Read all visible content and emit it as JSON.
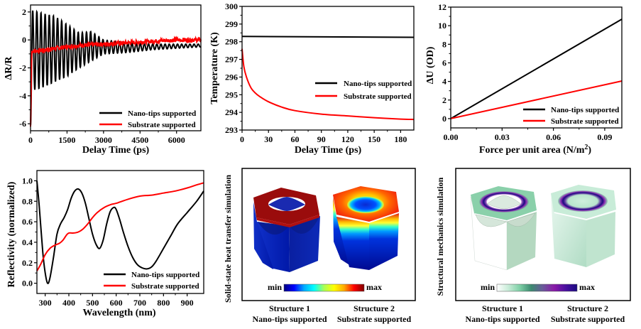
{
  "colors": {
    "nano_tips": "#000000",
    "substrate": "#ff0000"
  },
  "legend": {
    "nano_tips": "Nano-tips supported",
    "substrate": "Substrate supported"
  },
  "chart_data": [
    {
      "id": "reflectivity-change",
      "type": "line",
      "title": "",
      "xlabel": "Delay Time (ps)",
      "ylabel": "ΔR/R",
      "xlim": [
        0,
        7000
      ],
      "ylim": [
        -6.5,
        2.5
      ],
      "xticks": [
        0,
        1500,
        3000,
        4500,
        6000
      ],
      "yticks": [
        -6,
        -4,
        -2,
        0,
        2
      ],
      "legend_position": "bottom-right",
      "series": [
        {
          "name": "Nano-tips supported",
          "description": "damped oscillation, period ~170 ps, amplitude decays from ~2.8 to ~0.2, baseline rising from -0.8 to -0.3",
          "period_ps": 170,
          "x": [
            0,
            100,
            500,
            1000,
            1500,
            2000,
            2500,
            3000,
            4000,
            5000,
            6000,
            7000
          ],
          "y_max": [
            2.1,
            2.1,
            1.9,
            1.7,
            1.1,
            0.5,
            0.6,
            0.0,
            -0.2,
            -0.3,
            -0.3,
            -0.3
          ],
          "y_min": [
            -6.2,
            -3.6,
            -3.4,
            -3.0,
            -2.6,
            -2.0,
            -1.5,
            -1.0,
            -0.9,
            -0.7,
            -0.6,
            -0.5
          ]
        },
        {
          "name": "Substrate supported",
          "x": [
            0,
            50,
            100,
            500,
            1000,
            2000,
            3000,
            4000,
            5000,
            6000,
            7000
          ],
          "y": [
            -6.2,
            -0.8,
            -0.8,
            -0.75,
            -0.6,
            -0.4,
            -0.3,
            -0.2,
            -0.1,
            0.0,
            0.0
          ]
        }
      ]
    },
    {
      "id": "temperature",
      "type": "line",
      "xlabel": "Delay Time (ps)",
      "ylabel": "Temperature (K)",
      "xlim": [
        0,
        195
      ],
      "ylim": [
        293,
        300
      ],
      "xticks": [
        0,
        30,
        60,
        90,
        120,
        150,
        180
      ],
      "yticks": [
        293,
        294,
        295,
        296,
        297,
        298,
        299,
        300
      ],
      "legend_position": "middle-right",
      "series": [
        {
          "name": "Nano-tips supported",
          "x": [
            0,
            195
          ],
          "y": [
            298.3,
            298.25
          ]
        },
        {
          "name": "Substrate supported",
          "x": [
            0,
            2,
            5,
            10,
            15,
            20,
            30,
            45,
            60,
            90,
            120,
            150,
            180,
            195
          ],
          "y": [
            297.6,
            296.6,
            296.0,
            295.4,
            295.1,
            294.9,
            294.6,
            294.3,
            294.1,
            293.9,
            293.8,
            293.7,
            293.62,
            293.6
          ]
        }
      ]
    },
    {
      "id": "displacement",
      "type": "line",
      "xlabel": "Force per unit area (N/m",
      "xlabel_sup": "2",
      "xlabel_end": ")",
      "ylabel": "ΔU (OD)",
      "xlim": [
        0,
        0.1
      ],
      "ylim": [
        -1,
        12
      ],
      "xticks": [
        0.0,
        0.03,
        0.06,
        0.09
      ],
      "xtick_labels": [
        "0.00",
        "0.03",
        "0.06",
        "0.09"
      ],
      "yticks": [
        0,
        2,
        4,
        6,
        8,
        10,
        12
      ],
      "legend_position": "bottom-right",
      "series": [
        {
          "name": "Nano-tips supported",
          "x": [
            0,
            0.1
          ],
          "y": [
            0,
            10.7
          ]
        },
        {
          "name": "Substrate supported",
          "x": [
            0,
            0.1
          ],
          "y": [
            0,
            4.05
          ]
        }
      ]
    },
    {
      "id": "reflectivity",
      "type": "line",
      "xlabel": "Wavelength (nm)",
      "ylabel": "Reflectivity (normalized)",
      "xlim": [
        265,
        970
      ],
      "ylim": [
        -0.1,
        1.1
      ],
      "xticks": [
        300,
        400,
        500,
        600,
        700,
        800,
        900
      ],
      "yticks": [
        0.0,
        0.2,
        0.4,
        0.6,
        0.8,
        1.0
      ],
      "ytick_labels": [
        "0.0",
        "0.2",
        "0.4",
        "0.6",
        "0.8",
        "1.0"
      ],
      "legend_position": "bottom-right",
      "series": [
        {
          "name": "Nano-tips supported",
          "x": [
            265,
            275,
            290,
            300,
            310,
            320,
            335,
            350,
            365,
            380,
            395,
            410,
            425,
            440,
            455,
            470,
            485,
            500,
            515,
            530,
            545,
            560,
            575,
            590,
            600,
            615,
            630,
            650,
            670,
            690,
            710,
            730,
            750,
            770,
            800,
            830,
            860,
            900,
            940,
            970
          ],
          "y": [
            1.0,
            0.75,
            0.3,
            0.1,
            0.0,
            0.05,
            0.25,
            0.48,
            0.58,
            0.64,
            0.72,
            0.83,
            0.9,
            0.92,
            0.88,
            0.78,
            0.63,
            0.48,
            0.38,
            0.34,
            0.42,
            0.58,
            0.7,
            0.74,
            0.72,
            0.62,
            0.5,
            0.36,
            0.25,
            0.18,
            0.15,
            0.14,
            0.16,
            0.22,
            0.34,
            0.46,
            0.58,
            0.69,
            0.8,
            0.9
          ]
        },
        {
          "name": "Substrate supported",
          "x": [
            265,
            280,
            300,
            320,
            340,
            360,
            375,
            390,
            400,
            420,
            440,
            460,
            480,
            500,
            520,
            550,
            580,
            600,
            650,
            700,
            750,
            800,
            850,
            900,
            940,
            970
          ],
          "y": [
            0.12,
            0.18,
            0.28,
            0.34,
            0.37,
            0.39,
            0.42,
            0.47,
            0.49,
            0.49,
            0.5,
            0.53,
            0.58,
            0.64,
            0.69,
            0.74,
            0.77,
            0.78,
            0.82,
            0.85,
            0.86,
            0.88,
            0.9,
            0.93,
            0.96,
            0.98
          ]
        }
      ]
    }
  ],
  "simulations": [
    {
      "id": "heat-transfer",
      "side_label": "Solid-state heat transfer simulation",
      "colorbar_min": "min",
      "colorbar_max": "max",
      "colormap": [
        "#00007f",
        "#0000ff",
        "#00aaff",
        "#00ffff",
        "#aaff55",
        "#ffff00",
        "#ffaa00",
        "#ff0000",
        "#7f0000"
      ],
      "structures": [
        {
          "title": "Structure 1",
          "subtitle": "Nano-tips supported"
        },
        {
          "title": "Structure 2",
          "subtitle": "Substrate supported"
        }
      ]
    },
    {
      "id": "structural-mechanics",
      "side_label": "Structural mechanics simulation",
      "colorbar_min": "min",
      "colorbar_max": "max",
      "colormap": [
        "#ffffff",
        "#c8ecd8",
        "#7ed0a6",
        "#3c8a70",
        "#6a5a9a",
        "#8a1aa8",
        "#4a10a0",
        "#1a0a80"
      ],
      "structures": [
        {
          "title": "Structure 1",
          "subtitle": "Nano-tips supported"
        },
        {
          "title": "Structure 2",
          "subtitle": "Substrate supported"
        }
      ]
    }
  ]
}
